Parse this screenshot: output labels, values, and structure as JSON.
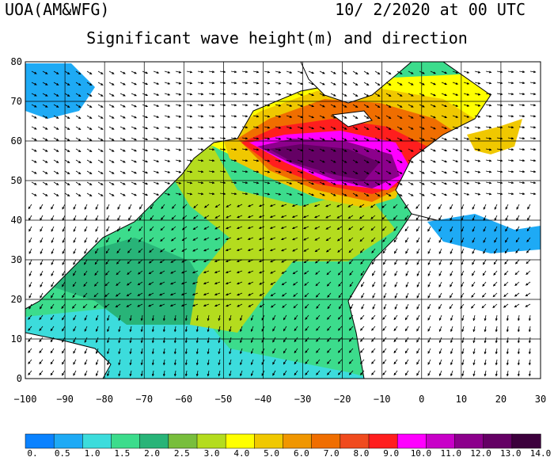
{
  "header": {
    "source": "UOA(AM&WFG)",
    "datetime": "10/ 2/2020 at 00 UTC",
    "title": "Significant wave height(m) and direction"
  },
  "axes": {
    "lat_ticks": [
      "80",
      "70",
      "60",
      "50",
      "40",
      "30",
      "20",
      "10",
      "0"
    ],
    "lon_ticks": [
      "−100",
      "−90",
      "−80",
      "−70",
      "−60",
      "−50",
      "−40",
      "−30",
      "−20",
      "−10",
      "0",
      "10",
      "20",
      "30"
    ]
  },
  "colorbar": {
    "labels": [
      "0.",
      "0.5",
      "1.0",
      "1.5",
      "2.0",
      "2.5",
      "3.0",
      "4.0",
      "5.0",
      "6.0",
      "7.0",
      "8.0",
      "9.0",
      "10.0",
      "11.0",
      "12.0",
      "13.0",
      "14.0"
    ],
    "colors": [
      "#0a82ff",
      "#1eaaf5",
      "#3cdcdc",
      "#3cdc8c",
      "#28b478",
      "#78be3c",
      "#b4dc1e",
      "#ffff00",
      "#f0c800",
      "#f09600",
      "#f06e00",
      "#f04b1e",
      "#ff1e1e",
      "#ff00ff",
      "#c800c8",
      "#8c008c",
      "#640064",
      "#3c003c"
    ]
  },
  "colors": {
    "land": "#ffffff",
    "coast": "#000000",
    "grid": "#000000"
  }
}
